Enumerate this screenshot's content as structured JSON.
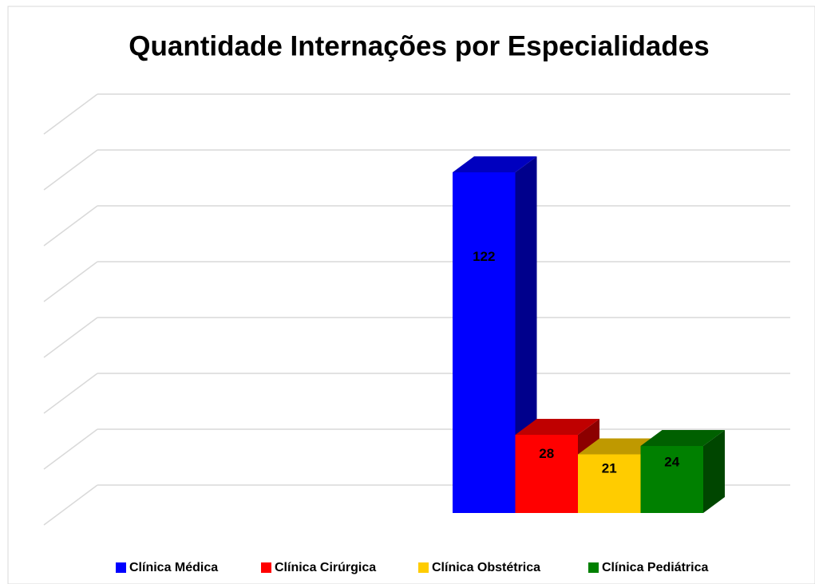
{
  "chart_data": {
    "type": "bar3d",
    "title": "Quantidade Internações por Especialidades",
    "series": [
      {
        "name": "Clínica Médica",
        "color": "#0000ff",
        "values": [
          122
        ]
      },
      {
        "name": "Clínica Cirúrgica",
        "color": "#ff0000",
        "values": [
          28
        ]
      },
      {
        "name": "Clínica Obstétrica",
        "color": "#ffcc00",
        "values": [
          21
        ]
      },
      {
        "name": "Clínica Pediátrica",
        "color": "#008000",
        "values": [
          24
        ]
      }
    ],
    "ylim": [
      0,
      140
    ],
    "yticks": [
      0,
      20,
      40,
      60,
      80,
      100,
      120,
      140
    ],
    "grid": true,
    "legend": "bottom"
  }
}
